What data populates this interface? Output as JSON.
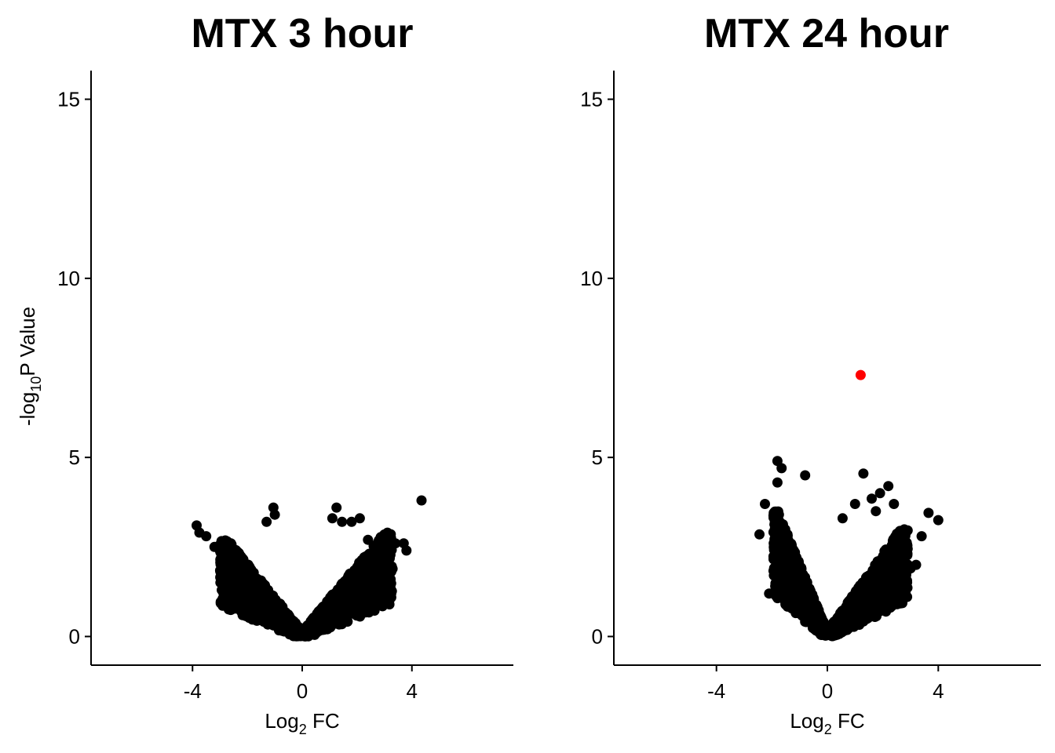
{
  "chart_data": [
    {
      "type": "scatter",
      "title": "MTX 3 hour",
      "xlabel": {
        "base": "Log",
        "sub": "2",
        "tail": " FC"
      },
      "ylabel": {
        "base": "-log",
        "sub": "10",
        "tail": "P Value"
      },
      "xlim": [
        -7.7,
        7.7
      ],
      "ylim": [
        -0.8,
        15.8
      ],
      "xticks": [
        -4,
        0,
        4
      ],
      "yticks": [
        0,
        5,
        10,
        15
      ],
      "grid": false,
      "point_color": "#000000",
      "highlight_color": "#ff0000",
      "series": [
        {
          "points": [
            [
              4.35,
              3.8
            ],
            [
              -3.85,
              3.1
            ],
            [
              -3.75,
              2.9
            ],
            [
              -3.5,
              2.8
            ],
            [
              -3.2,
              2.5
            ],
            [
              -1.05,
              3.6
            ],
            [
              -1.0,
              3.4
            ],
            [
              -1.3,
              3.2
            ],
            [
              1.25,
              3.6
            ],
            [
              1.1,
              3.3
            ],
            [
              1.45,
              3.2
            ],
            [
              1.8,
              3.2
            ],
            [
              2.1,
              3.3
            ],
            [
              2.4,
              2.7
            ],
            [
              3.7,
              2.6
            ],
            [
              3.8,
              2.4
            ],
            [
              3.4,
              2.6
            ],
            [
              3.0,
              2.5
            ],
            [
              -2.6,
              2.6
            ],
            [
              -2.8,
              2.3
            ]
          ],
          "density": [
            {
              "x": [
                -3.0,
                -0.05
              ],
              "ymax": 2.7
            },
            {
              "x": [
                0.05,
                3.3
              ],
              "ymax": 2.9
            }
          ]
        }
      ]
    },
    {
      "type": "scatter",
      "title": "MTX 24 hour",
      "xlabel": {
        "base": "Log",
        "sub": "2",
        "tail": " FC"
      },
      "ylabel": null,
      "xlim": [
        -7.7,
        7.7
      ],
      "ylim": [
        -0.8,
        15.8
      ],
      "xticks": [
        -4,
        0,
        4
      ],
      "yticks": [
        0,
        5,
        10,
        15
      ],
      "grid": false,
      "point_color": "#000000",
      "highlight_color": "#ff0000",
      "series": [
        {
          "points": [
            [
              -1.8,
              4.9
            ],
            [
              -1.65,
              4.7
            ],
            [
              -1.8,
              4.3
            ],
            [
              -0.8,
              4.5
            ],
            [
              -2.25,
              3.7
            ],
            [
              -2.45,
              2.85
            ],
            [
              -2.1,
              1.2
            ],
            [
              -1.55,
              1.05
            ],
            [
              1.3,
              4.55
            ],
            [
              2.2,
              4.2
            ],
            [
              1.9,
              4.0
            ],
            [
              1.6,
              3.85
            ],
            [
              1.0,
              3.7
            ],
            [
              2.4,
              3.7
            ],
            [
              3.65,
              3.45
            ],
            [
              4.0,
              3.25
            ],
            [
              1.75,
              3.5
            ],
            [
              0.55,
              3.3
            ],
            [
              3.4,
              2.8
            ],
            [
              2.55,
              2.8
            ],
            [
              3.0,
              1.9
            ],
            [
              3.2,
              2.0
            ]
          ],
          "density": [
            {
              "x": [
                -1.95,
                -0.05
              ],
              "ymax": 3.5
            },
            {
              "x": [
                0.05,
                2.9
              ],
              "ymax": 3.0
            }
          ],
          "highlight": [
            [
              1.2,
              7.3
            ]
          ]
        }
      ]
    }
  ]
}
